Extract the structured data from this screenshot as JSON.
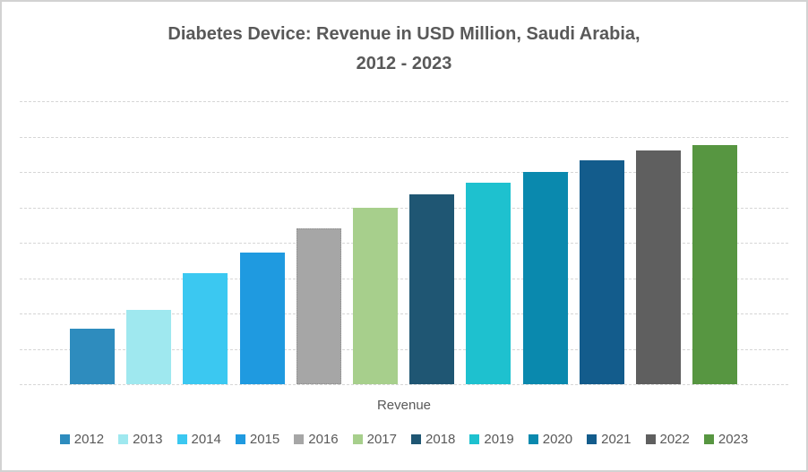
{
  "title": {
    "lines": [
      "Diabetes Device: Revenue in USD Million, Saudi Arabia,",
      "2012 - 2023"
    ],
    "color": "#595959"
  },
  "x_axis": {
    "category_label": "Revenue",
    "label_color": "#595959"
  },
  "y_axis": {
    "tick_labels_visible": false,
    "gridlines_visible": true,
    "gridline_count": 9
  },
  "legend": {
    "position": "bottom",
    "text_color": "#595959",
    "items": [
      {
        "label": "2012",
        "color": "#2E8CBE"
      },
      {
        "label": "2013",
        "color": "#9FE8EF"
      },
      {
        "label": "2014",
        "color": "#3BC8F1"
      },
      {
        "label": "2015",
        "color": "#1F9AE0"
      },
      {
        "label": "2016",
        "color": "#A6A6A6"
      },
      {
        "label": "2017",
        "color": "#A7CF8C"
      },
      {
        "label": "2018",
        "color": "#1F5673"
      },
      {
        "label": "2019",
        "color": "#1EC1CF"
      },
      {
        "label": "2020",
        "color": "#0A89AE"
      },
      {
        "label": "2021",
        "color": "#135C8C"
      },
      {
        "label": "2022",
        "color": "#5F5F5F"
      },
      {
        "label": "2023",
        "color": "#579641"
      }
    ]
  },
  "chart_data": {
    "type": "bar",
    "title": "Diabetes Device: Revenue in USD Million, Saudi Arabia, 2012 - 2023",
    "categories": [
      "Revenue"
    ],
    "note": "Y axis has no visible tick labels; values estimated in gridline units (1 unit = 1 horizontal gridline interval).",
    "ylim": [
      0,
      8
    ],
    "grid": true,
    "legend_position": "bottom",
    "series": [
      {
        "name": "2012",
        "values": [
          1.57
        ],
        "color": "#2E8CBE",
        "selected": false
      },
      {
        "name": "2013",
        "values": [
          2.1
        ],
        "color": "#9FE8EF",
        "selected": false
      },
      {
        "name": "2014",
        "values": [
          3.14
        ],
        "color": "#3BC8F1",
        "selected": false
      },
      {
        "name": "2015",
        "values": [
          3.72
        ],
        "color": "#1F9AE0",
        "selected": false
      },
      {
        "name": "2016",
        "values": [
          4.41
        ],
        "color": "#A6A6A6",
        "selected": true
      },
      {
        "name": "2017",
        "values": [
          4.99
        ],
        "color": "#A7CF8C",
        "selected": false
      },
      {
        "name": "2018",
        "values": [
          5.37
        ],
        "color": "#1F5673",
        "selected": false
      },
      {
        "name": "2019",
        "values": [
          5.7
        ],
        "color": "#1EC1CF",
        "selected": false
      },
      {
        "name": "2020",
        "values": [
          6.0
        ],
        "color": "#0A89AE",
        "selected": false
      },
      {
        "name": "2021",
        "values": [
          6.33
        ],
        "color": "#135C8C",
        "selected": false
      },
      {
        "name": "2022",
        "values": [
          6.61
        ],
        "color": "#5F5F5F",
        "selected": false
      },
      {
        "name": "2023",
        "values": [
          6.76
        ],
        "color": "#579641",
        "selected": false
      }
    ]
  }
}
